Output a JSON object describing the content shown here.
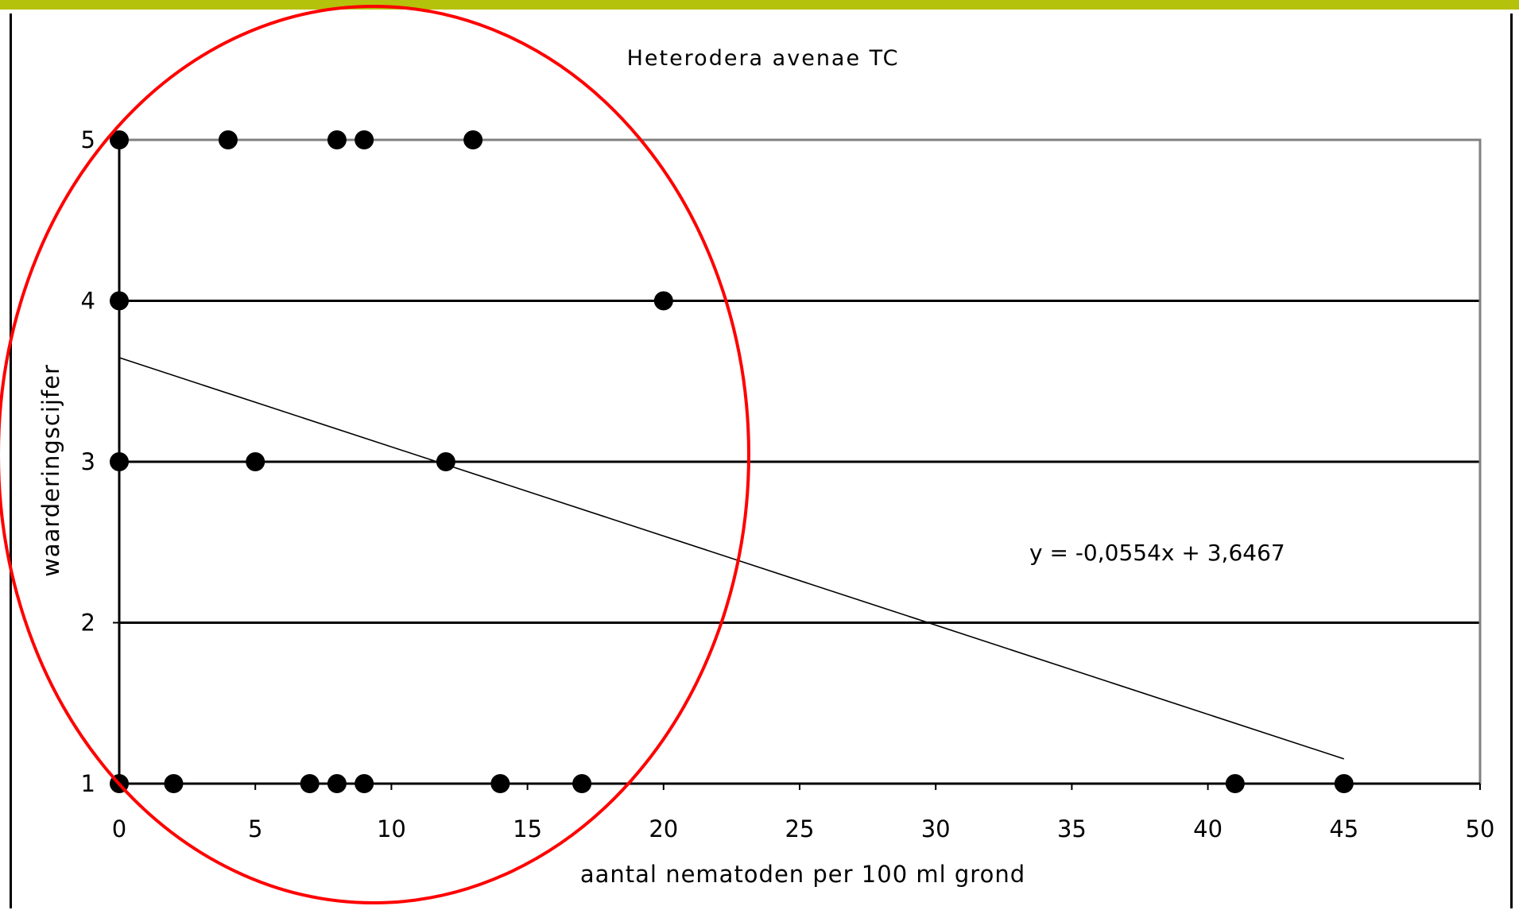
{
  "colors": {
    "top_bar": "#b5c20b",
    "highlight_ellipse": "#ff0000",
    "points": "#000000",
    "plot_border": "#808080"
  },
  "chart_data": {
    "type": "scatter",
    "title": "Heterodera avenae TC",
    "xlabel": "aantal nematoden per 100 ml grond",
    "ylabel": "waarderingscijfer",
    "xlim": [
      0,
      50
    ],
    "ylim": [
      1,
      5
    ],
    "x_ticks": [
      "0",
      "5",
      "10",
      "15",
      "20",
      "25",
      "30",
      "35",
      "40",
      "45",
      "50"
    ],
    "y_ticks": [
      "1",
      "2",
      "3",
      "4",
      "5"
    ],
    "grid": "horizontal",
    "points": [
      {
        "x": 0,
        "y": 5
      },
      {
        "x": 4,
        "y": 5
      },
      {
        "x": 8,
        "y": 5
      },
      {
        "x": 9,
        "y": 5
      },
      {
        "x": 13,
        "y": 5
      },
      {
        "x": 0,
        "y": 4
      },
      {
        "x": 20,
        "y": 4
      },
      {
        "x": 0,
        "y": 3
      },
      {
        "x": 5,
        "y": 3
      },
      {
        "x": 12,
        "y": 3
      },
      {
        "x": 0,
        "y": 1
      },
      {
        "x": 2,
        "y": 1
      },
      {
        "x": 7,
        "y": 1
      },
      {
        "x": 8,
        "y": 1
      },
      {
        "x": 9,
        "y": 1
      },
      {
        "x": 14,
        "y": 1
      },
      {
        "x": 17,
        "y": 1
      },
      {
        "x": 41,
        "y": 1
      },
      {
        "x": 45,
        "y": 1
      }
    ],
    "trendline": {
      "slope": -0.0554,
      "intercept": 3.6467,
      "x_range": [
        0,
        45
      ]
    },
    "equation_label": "y = -0,0554x + 3,6467",
    "annotation": "red ellipse highlighting low nematode counts"
  }
}
